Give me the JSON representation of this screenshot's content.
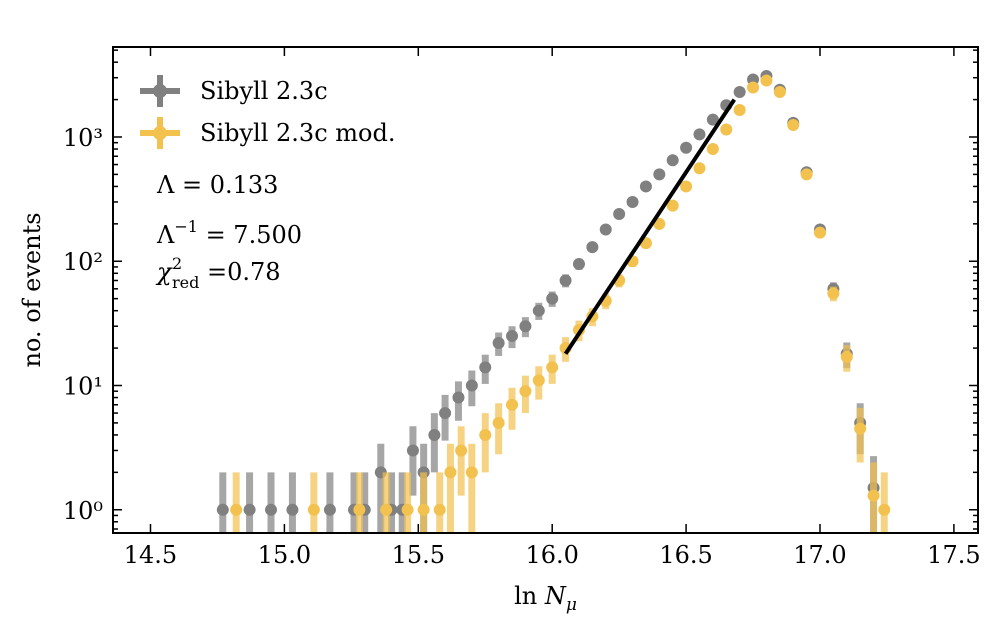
{
  "chart_data": {
    "type": "errorbar-scatter",
    "xlabel": {
      "prefix": "ln ",
      "italic": "N",
      "sub": "μ"
    },
    "ylabel": "no. of events",
    "log_y": true,
    "xlim": [
      14.36,
      17.59
    ],
    "ylim": [
      0.65,
      5300
    ],
    "xticks": [
      14.5,
      {
        "value": 15,
        "label": "15.0"
      },
      15.5,
      {
        "value": 16,
        "label": "16.0"
      },
      16.5,
      {
        "value": 17,
        "label": "17.0"
      },
      17.5
    ],
    "yticks": [
      {
        "value": 1,
        "label": "10⁰"
      },
      {
        "value": 10,
        "label": "10¹"
      },
      {
        "value": 100,
        "label": "10²"
      },
      {
        "value": 1000,
        "label": "10³"
      }
    ],
    "yminorticks": [
      0.7,
      0.8,
      0.9,
      2,
      3,
      4,
      5,
      6,
      7,
      8,
      9,
      20,
      30,
      40,
      50,
      60,
      70,
      80,
      90,
      200,
      300,
      400,
      500,
      600,
      700,
      800,
      900,
      2000,
      3000,
      4000,
      5000
    ],
    "legend": "upper left",
    "series": [
      {
        "name": "Sibyll 2.3c",
        "color": "#808080",
        "x": [
          14.77,
          14.87,
          14.95,
          15.03,
          15.17,
          15.26,
          15.3,
          15.36,
          15.4,
          15.44,
          15.48,
          15.52,
          15.56,
          15.6,
          15.65,
          15.7,
          15.75,
          15.8,
          15.85,
          15.9,
          15.95,
          16.0,
          16.05,
          16.1,
          16.15,
          16.2,
          16.25,
          16.3,
          16.35,
          16.4,
          16.45,
          16.5,
          16.55,
          16.6,
          16.65,
          16.7,
          16.75,
          16.8,
          16.85,
          16.9,
          16.95,
          17.0,
          17.05,
          17.1,
          17.15,
          17.2
        ],
        "values": [
          1,
          1,
          1,
          1,
          1,
          1,
          1,
          2,
          1,
          1,
          3,
          2,
          4,
          6,
          8,
          10,
          14,
          22,
          25,
          30,
          40,
          50,
          70,
          95,
          130,
          180,
          240,
          300,
          400,
          500,
          650,
          820,
          1050,
          1380,
          1800,
          2300,
          2900,
          3100,
          2400,
          1300,
          520,
          180,
          60,
          18,
          5,
          1.5
        ],
        "errors": [
          1,
          1,
          1,
          1,
          1,
          1,
          1,
          1.4,
          1,
          1,
          1.7,
          1.4,
          2,
          2.4,
          2.8,
          3.2,
          3.7,
          4.7,
          5,
          5.5,
          6.3,
          7.1,
          8.4,
          9.7,
          11.4,
          13.4,
          15.5,
          17.3,
          20,
          22.4,
          25.5,
          28.6,
          32.4,
          37.1,
          42.4,
          48,
          53.9,
          55.7,
          49,
          36.1,
          22.8,
          13.4,
          7.7,
          4.2,
          2.2,
          1.2
        ]
      },
      {
        "name": "Sibyll 2.3c mod.",
        "color": "#f2c14e",
        "x": [
          14.82,
          15.11,
          15.28,
          15.38,
          15.46,
          15.52,
          15.58,
          15.62,
          15.66,
          15.7,
          15.75,
          15.8,
          15.85,
          15.9,
          15.95,
          16.0,
          16.05,
          16.1,
          16.15,
          16.2,
          16.25,
          16.3,
          16.35,
          16.4,
          16.45,
          16.5,
          16.55,
          16.6,
          16.65,
          16.7,
          16.75,
          16.8,
          16.85,
          16.9,
          16.95,
          17.0,
          17.05,
          17.1,
          17.15,
          17.2,
          17.24
        ],
        "values": [
          1,
          1,
          1,
          1,
          1,
          1,
          1,
          2,
          3,
          2,
          4,
          5,
          7,
          9,
          11,
          14,
          20,
          28,
          36,
          48,
          70,
          100,
          140,
          200,
          280,
          400,
          560,
          800,
          1150,
          1650,
          2500,
          2850,
          2300,
          1250,
          500,
          170,
          55,
          17,
          4.5,
          1.3,
          1
        ],
        "errors": [
          1,
          1,
          1,
          1,
          1,
          1,
          1,
          1.4,
          1.7,
          1.4,
          2,
          2.2,
          2.6,
          3,
          3.3,
          3.7,
          4.5,
          5.3,
          6,
          6.9,
          8.4,
          10,
          11.8,
          14.1,
          16.7,
          20,
          23.7,
          28.3,
          33.9,
          40.6,
          50,
          53.4,
          48,
          35.4,
          22.4,
          13,
          7.4,
          4.1,
          2.1,
          1.1,
          1
        ]
      }
    ],
    "fit": {
      "color": "#000000",
      "x": [
        16.05,
        16.68
      ],
      "values": [
        18,
        2000
      ]
    },
    "annotations": [
      {
        "base": "Λ",
        "rest": " = 0.133"
      },
      {
        "base": "Λ",
        "sup": "−1",
        "rest": " = 7.500"
      },
      {
        "base": "χ",
        "sup": "2",
        "sub": "red",
        "rest": " =0.78"
      }
    ]
  }
}
